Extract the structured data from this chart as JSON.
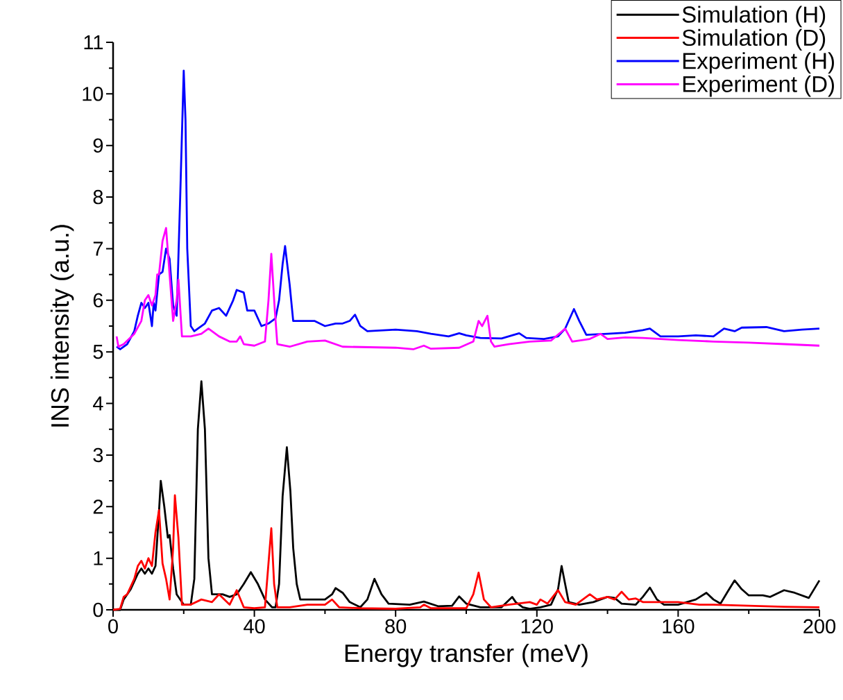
{
  "chart_data": {
    "type": "line",
    "xlabel": "Energy transfer (meV)",
    "ylabel": "INS intensity (a.u.)",
    "xlim": [
      0,
      200
    ],
    "ylim": [
      0,
      11
    ],
    "xticks": [
      0,
      40,
      80,
      120,
      160,
      200
    ],
    "yticks": [
      0,
      1,
      2,
      3,
      4,
      5,
      6,
      7,
      8,
      9,
      10,
      11
    ],
    "legend": "top right",
    "grid": false,
    "marker": "none",
    "line_style": "solid",
    "series": [
      {
        "name": "Simulation (H)",
        "color": "#000000",
        "x": [
          0,
          2,
          3,
          5,
          7,
          8,
          9,
          10,
          11,
          12,
          13,
          13.5,
          14.5,
          15.5,
          16,
          17,
          18,
          20,
          22,
          23,
          24,
          25,
          26,
          27,
          28,
          31,
          33,
          35,
          37,
          39,
          41,
          43,
          45,
          46,
          47,
          48,
          49.2,
          50.2,
          51,
          52,
          53,
          56,
          60,
          62,
          63,
          65,
          67,
          70,
          72,
          74,
          76,
          78,
          84,
          88,
          92,
          96,
          98,
          100,
          104,
          110,
          113,
          114,
          116,
          118,
          121,
          124,
          126,
          127,
          128,
          129,
          132,
          136,
          140,
          142,
          144,
          148,
          150,
          152,
          154,
          156,
          160,
          165,
          168,
          170,
          172,
          174,
          176,
          178,
          180,
          184,
          186,
          190,
          193,
          197,
          200
        ],
        "values": [
          0,
          0,
          0.2,
          0.4,
          0.7,
          0.8,
          0.7,
          0.8,
          0.7,
          0.85,
          1.9,
          2.5,
          2.0,
          1.4,
          1.45,
          0.8,
          0.3,
          0.1,
          0.1,
          0.6,
          3.5,
          4.43,
          3.5,
          1.0,
          0.3,
          0.3,
          0.25,
          0.3,
          0.5,
          0.73,
          0.5,
          0.2,
          0.05,
          0.05,
          0.5,
          2.2,
          3.15,
          2.3,
          1.2,
          0.5,
          0.2,
          0.2,
          0.2,
          0.3,
          0.42,
          0.33,
          0.15,
          0.05,
          0.2,
          0.6,
          0.3,
          0.12,
          0.1,
          0.16,
          0.07,
          0.08,
          0.26,
          0.12,
          0.05,
          0.05,
          0.25,
          0.15,
          0.05,
          0.02,
          0.05,
          0.1,
          0.4,
          0.85,
          0.5,
          0.15,
          0.1,
          0.15,
          0.25,
          0.23,
          0.12,
          0.1,
          0.25,
          0.43,
          0.2,
          0.1,
          0.1,
          0.2,
          0.33,
          0.2,
          0.12,
          0.35,
          0.57,
          0.4,
          0.28,
          0.28,
          0.25,
          0.38,
          0.33,
          0.23,
          0.57
        ]
      },
      {
        "name": "Simulation (D)",
        "color": "#ff0000",
        "x": [
          0,
          2,
          3,
          4,
          6,
          7,
          8,
          9,
          10,
          11,
          12,
          13,
          14,
          15,
          16,
          17,
          17.5,
          18.5,
          19.5,
          22,
          25,
          28,
          30,
          33,
          35,
          37,
          40,
          43,
          44,
          44.8,
          45.6,
          46.5,
          50,
          55,
          60,
          62,
          64,
          70,
          80,
          87,
          88,
          90,
          100,
          102,
          103.5,
          105,
          107,
          112,
          118,
          120,
          121,
          123,
          126,
          128,
          131,
          135,
          137,
          140,
          142,
          144,
          146,
          148,
          150,
          155,
          160,
          166,
          170,
          180,
          190,
          200
        ],
        "values": [
          0,
          0.02,
          0.25,
          0.3,
          0.6,
          0.85,
          0.95,
          0.8,
          1.0,
          0.85,
          1.5,
          1.93,
          0.9,
          0.6,
          0.2,
          1.2,
          2.22,
          1.4,
          0.1,
          0.1,
          0.2,
          0.15,
          0.3,
          0.1,
          0.38,
          0.05,
          0.03,
          0.05,
          0.9,
          1.58,
          0.5,
          0.05,
          0.05,
          0.1,
          0.1,
          0.2,
          0.05,
          0.03,
          0.02,
          0.05,
          0.1,
          0.03,
          0.03,
          0.3,
          0.72,
          0.2,
          0.05,
          0.1,
          0.15,
          0.1,
          0.2,
          0.12,
          0.38,
          0.15,
          0.1,
          0.3,
          0.2,
          0.25,
          0.2,
          0.35,
          0.2,
          0.22,
          0.15,
          0.15,
          0.15,
          0.1,
          0.1,
          0.08,
          0.06,
          0.05
        ]
      },
      {
        "name": "Experiment (H)",
        "color": "#0000ff",
        "x": [
          1,
          2,
          4,
          6,
          7,
          8,
          9,
          10,
          11,
          11.5,
          12,
          13,
          14,
          15,
          16,
          17,
          18,
          19,
          20,
          20.5,
          21,
          22,
          23,
          26,
          28,
          30,
          32,
          34,
          35,
          37,
          38,
          40,
          42,
          44,
          46,
          47,
          48,
          48.7,
          50,
          51,
          55,
          57,
          60,
          63,
          65,
          67,
          68.5,
          70,
          72,
          80,
          86,
          90,
          95,
          98,
          100,
          104,
          110,
          115,
          117,
          122,
          126,
          128,
          130.5,
          132,
          134,
          140,
          145,
          150,
          152,
          155,
          160,
          165,
          170,
          173,
          176,
          178,
          185,
          190,
          195,
          200
        ],
        "values": [
          5.1,
          5.05,
          5.15,
          5.4,
          5.7,
          5.95,
          5.85,
          5.95,
          5.5,
          5.95,
          5.8,
          6.5,
          6.55,
          7.0,
          6.8,
          5.9,
          5.7,
          8.0,
          10.45,
          9.5,
          7.0,
          5.5,
          5.4,
          5.55,
          5.8,
          5.85,
          5.7,
          6.0,
          6.2,
          6.15,
          5.8,
          5.8,
          5.5,
          5.55,
          5.65,
          6.0,
          6.7,
          7.05,
          6.3,
          5.6,
          5.6,
          5.6,
          5.5,
          5.55,
          5.55,
          5.6,
          5.72,
          5.5,
          5.4,
          5.43,
          5.4,
          5.35,
          5.3,
          5.36,
          5.32,
          5.27,
          5.26,
          5.36,
          5.27,
          5.25,
          5.3,
          5.45,
          5.83,
          5.6,
          5.33,
          5.35,
          5.37,
          5.42,
          5.45,
          5.3,
          5.3,
          5.32,
          5.3,
          5.45,
          5.4,
          5.47,
          5.48,
          5.4,
          5.43,
          5.45
        ]
      },
      {
        "name": "Experiment (D)",
        "color": "#ff00ff",
        "x": [
          1,
          1.5,
          3,
          6,
          8,
          9,
          10,
          11,
          12,
          12.5,
          13,
          14,
          15,
          16,
          17,
          18,
          18.5,
          19.5,
          22,
          25,
          27,
          30,
          33,
          35,
          36,
          37,
          40,
          43,
          44,
          44.8,
          45.8,
          46.5,
          50,
          55,
          60,
          65,
          80,
          85,
          88,
          90,
          98,
          102,
          103.5,
          104.5,
          106,
          107,
          108,
          112,
          118,
          124,
          128,
          130,
          135,
          138,
          140,
          145,
          150,
          155,
          160,
          170,
          180,
          190,
          200
        ],
        "values": [
          5.3,
          5.1,
          5.15,
          5.35,
          5.6,
          6.0,
          6.1,
          5.9,
          6.1,
          6.5,
          6.5,
          7.15,
          7.4,
          6.5,
          5.6,
          6.0,
          6.4,
          5.3,
          5.3,
          5.35,
          5.45,
          5.3,
          5.2,
          5.2,
          5.3,
          5.15,
          5.12,
          5.2,
          6.0,
          6.9,
          5.8,
          5.15,
          5.1,
          5.2,
          5.22,
          5.1,
          5.08,
          5.05,
          5.12,
          5.06,
          5.08,
          5.2,
          5.6,
          5.5,
          5.7,
          5.2,
          5.1,
          5.15,
          5.2,
          5.22,
          5.45,
          5.2,
          5.25,
          5.35,
          5.25,
          5.28,
          5.27,
          5.25,
          5.23,
          5.2,
          5.18,
          5.15,
          5.12
        ]
      }
    ]
  }
}
